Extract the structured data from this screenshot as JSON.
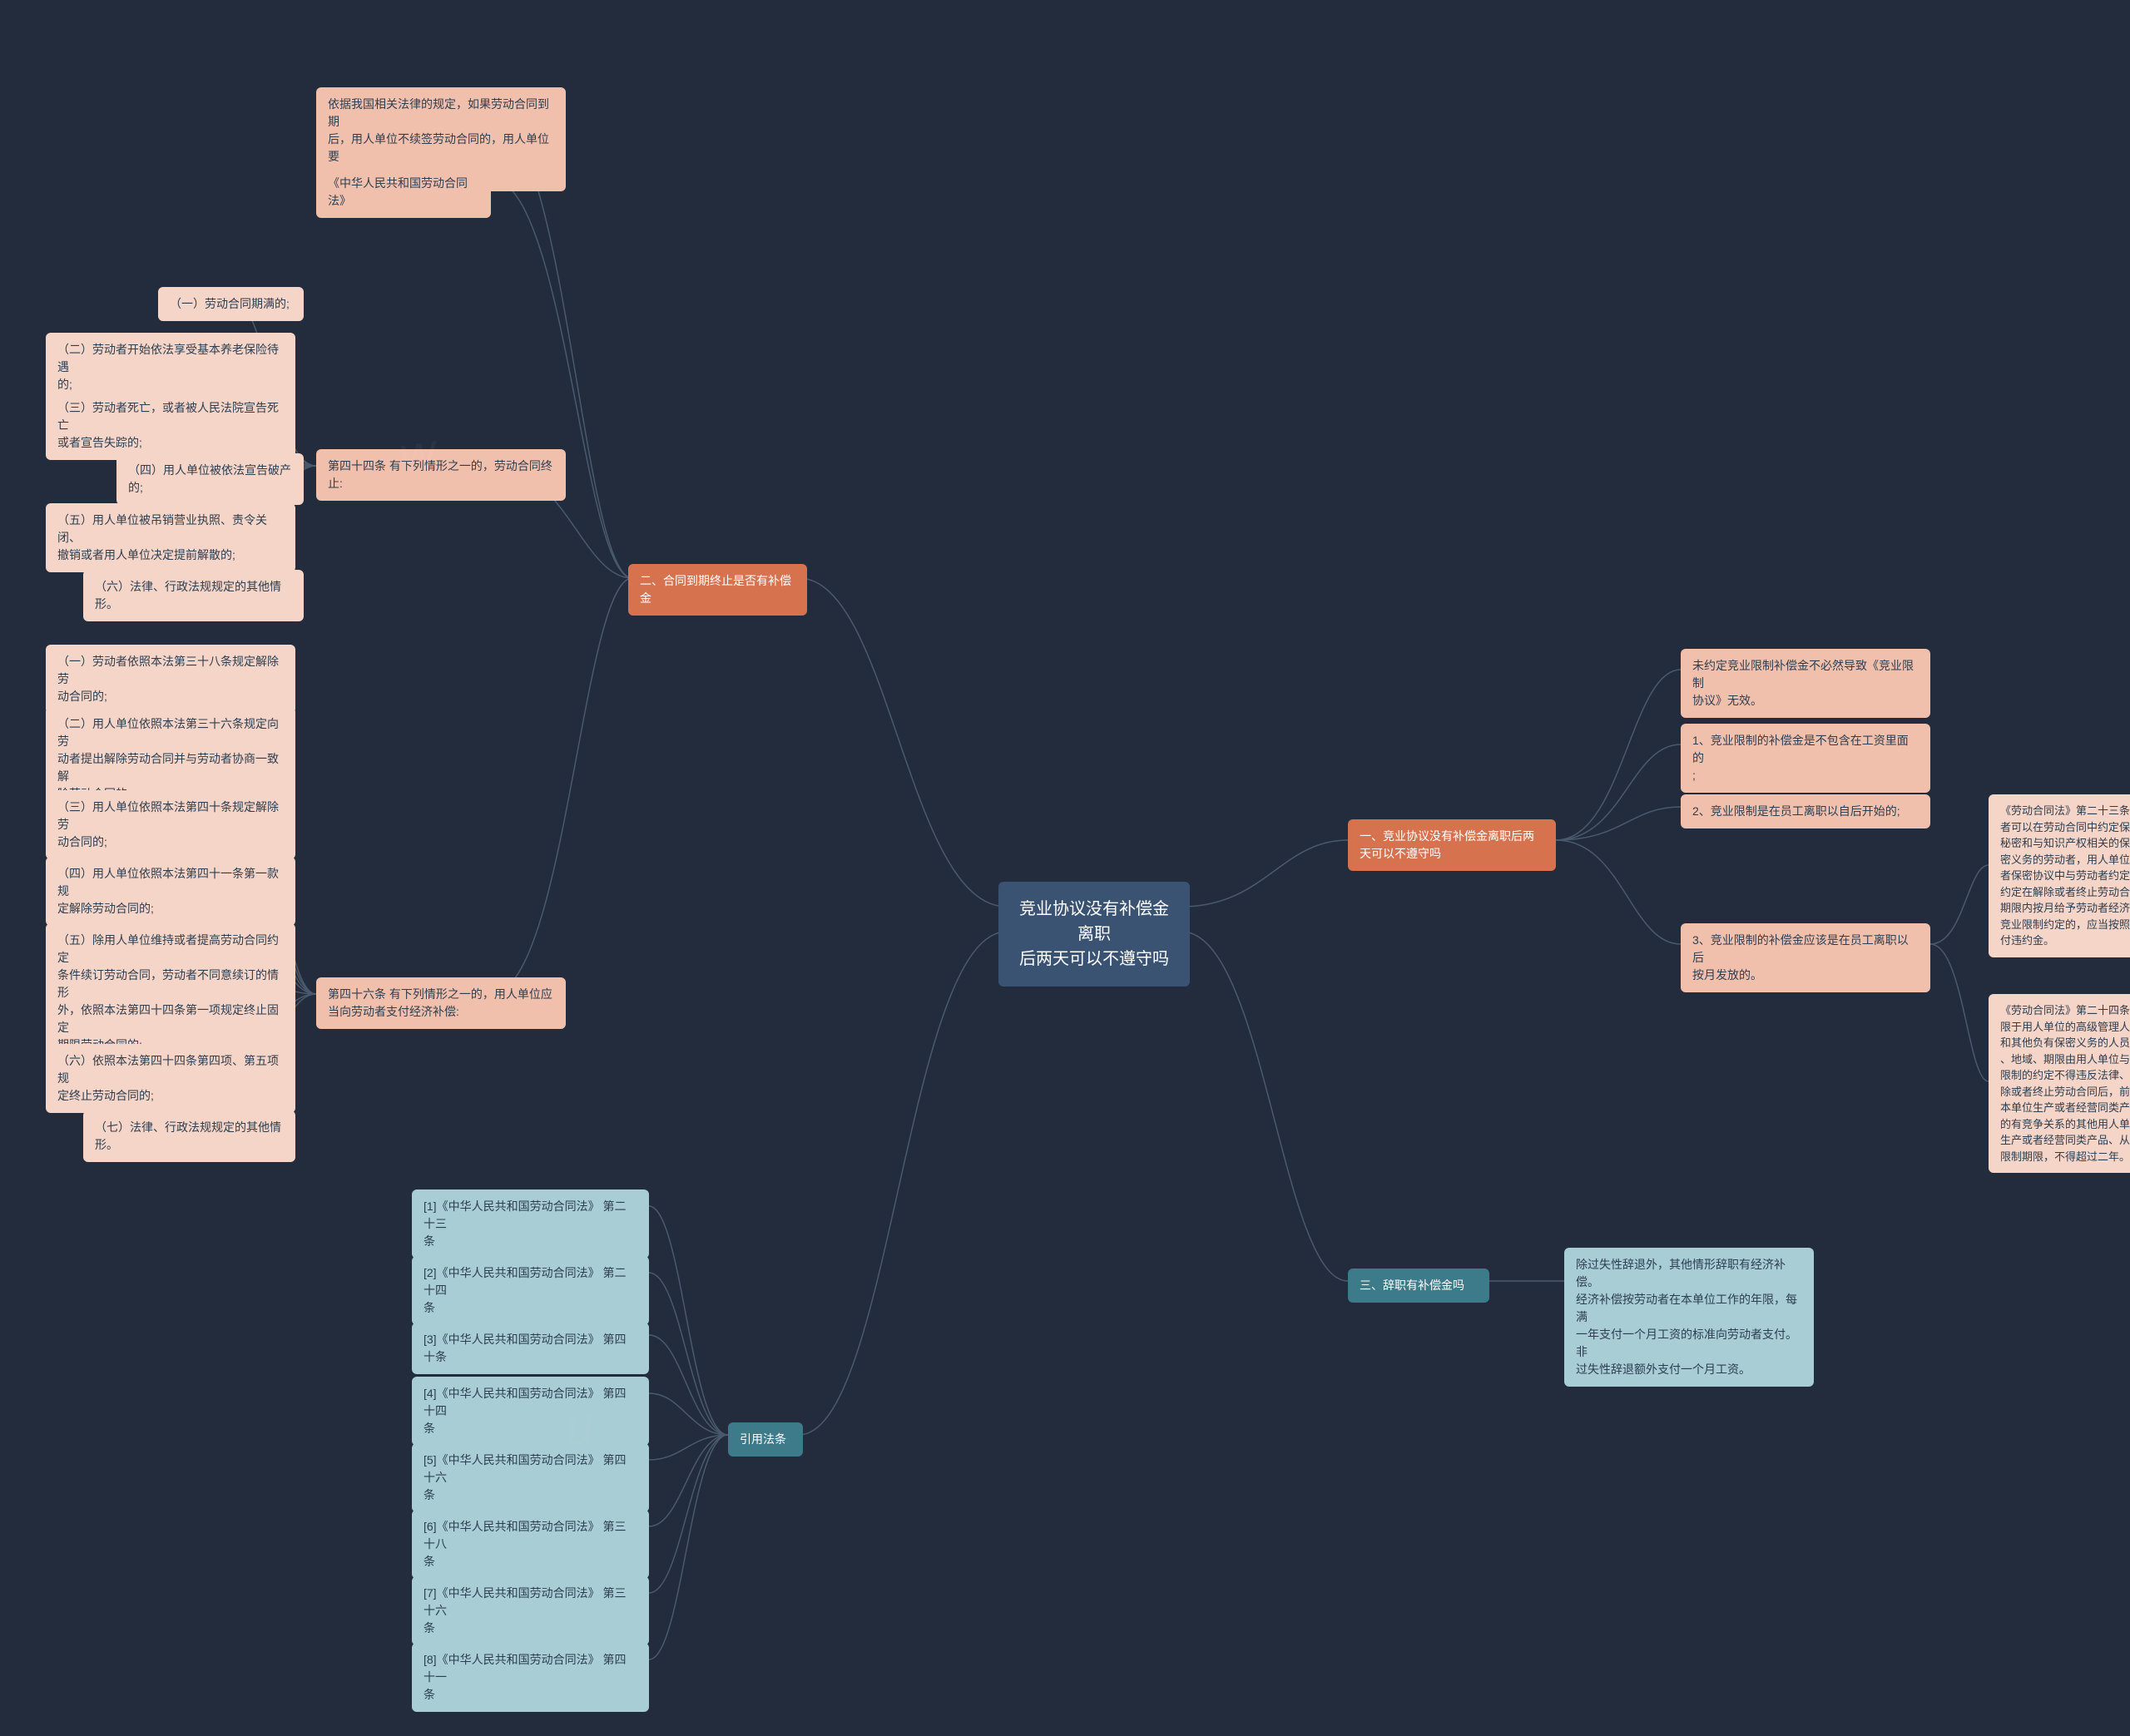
{
  "colors": {
    "bg": "#222c3c",
    "root": "#3a5373",
    "orange": "#d7724f",
    "orange_light": "#f1c0ad",
    "orange_lighter": "#f5d5c8",
    "teal": "#3d7a8a",
    "teal_light": "#a8cdd4",
    "teal_lighter": "#cce2e6",
    "connector": "#4a5a6e"
  },
  "root": {
    "title": "竞业协议没有补偿金离职\n后两天可以不遵守吗"
  },
  "branch1": {
    "title": "一、竞业协议没有补偿金离职后两\n天可以不遵守吗",
    "n1": "未约定竞业限制补偿金不必然导致《竞业限制\n协议》无效。",
    "n2": "1、竞业限制的补偿金是不包含在工资里面的\n;",
    "n3": "2、竞业限制是在员工离职以自后开始的;",
    "n4": "3、竞业限制的补偿金应该是在员工离职以后\n按月发放的。",
    "n4a": "《劳动合同法》第二十三条 用人单位与劳动\n者可以在劳动合同中约定保守用人单位的商业\n秘密和与知识产权相关的保密事项。对负有保\n密义务的劳动者，用人单位可以在劳动合同或\n者保密协议中与劳动者约定竞业限制条款，并\n约定在解除或者终止劳动合同后，在竞业限制\n期限内按月给予劳动者经济补偿。劳动者违反\n竞业限制约定的，应当按照约定向用人单位支\n付违约金。",
    "n4b": "《劳动合同法》第二十四条 竞业限制的人员\n限于用人单位的高级管理人员、高级技术人员\n和其他负有保密义务的人员。竞业限制的范围\n、地域、期限由用人单位与劳动者约定，竞业\n限制的约定不得违反法律、法规的规定。在解\n除或者终止劳动合同后，前款规定的人员到与\n本单位生产或者经营同类产品、从事同类业务\n的有竞争关系的其他用人单位，或者自己开业\n生产或者经营同类产品、从事同类业务的竞业\n限制期限，不得超过二年。"
  },
  "branch2": {
    "title": "二、合同到期终止是否有补偿金",
    "n1": "依据我国相关法律的规定，如果劳动合同到期\n后，用人单位不续签劳动合同的，用人单位要\n给予劳动者一定的经济补偿金。",
    "n2": "《中华人民共和国劳动合同法》",
    "n3": "第四十四条 有下列情形之一的，劳动合同终\n止:",
    "n3_1": "（一）劳动合同期满的;",
    "n3_2": "（二）劳动者开始依法享受基本养老保险待遇\n的;",
    "n3_3": "（三）劳动者死亡，或者被人民法院宣告死亡\n或者宣告失踪的;",
    "n3_4": "（四）用人单位被依法宣告破产的;",
    "n3_5": "（五）用人单位被吊销营业执照、责令关闭、\n撤销或者用人单位决定提前解散的;",
    "n3_6": "（六）法律、行政法规规定的其他情形。",
    "n4": "第四十六条 有下列情形之一的，用人单位应\n当向劳动者支付经济补偿:",
    "n4_1": "（一）劳动者依照本法第三十八条规定解除劳\n动合同的;",
    "n4_2": "（二）用人单位依照本法第三十六条规定向劳\n动者提出解除劳动合同并与劳动者协商一致解\n除劳动合同的;",
    "n4_3": "（三）用人单位依照本法第四十条规定解除劳\n动合同的;",
    "n4_4": "（四）用人单位依照本法第四十一条第一款规\n定解除劳动合同的;",
    "n4_5": "（五）除用人单位维持或者提高劳动合同约定\n条件续订劳动合同，劳动者不同意续订的情形\n外，依照本法第四十四条第一项规定终止固定\n期限劳动合同的;",
    "n4_6": "（六）依照本法第四十四条第四项、第五项规\n定终止劳动合同的;",
    "n4_7": "（七）法律、行政法规规定的其他情形。"
  },
  "branch3": {
    "title": "三、辞职有补偿金吗",
    "n1": "除过失性辞退外，其他情形辞职有经济补偿。\n经济补偿按劳动者在本单位工作的年限，每满\n一年支付一个月工资的标准向劳动者支付。非\n过失性辞退额外支付一个月工资。"
  },
  "branch4": {
    "title": "引用法条",
    "n1": "[1]《中华人民共和国劳动合同法》 第二十三\n条",
    "n2": "[2]《中华人民共和国劳动合同法》 第二十四\n条",
    "n3": "[3]《中华人民共和国劳动合同法》 第四十条",
    "n4": "[4]《中华人民共和国劳动合同法》 第四十四\n条",
    "n5": "[5]《中华人民共和国劳动合同法》 第四十六\n条",
    "n6": "[6]《中华人民共和国劳动合同法》 第三十八\n条",
    "n7": "[7]《中华人民共和国劳动合同法》 第三十六\n条",
    "n8": "[8]《中华人民共和国劳动合同法》 第四十一\n条"
  }
}
